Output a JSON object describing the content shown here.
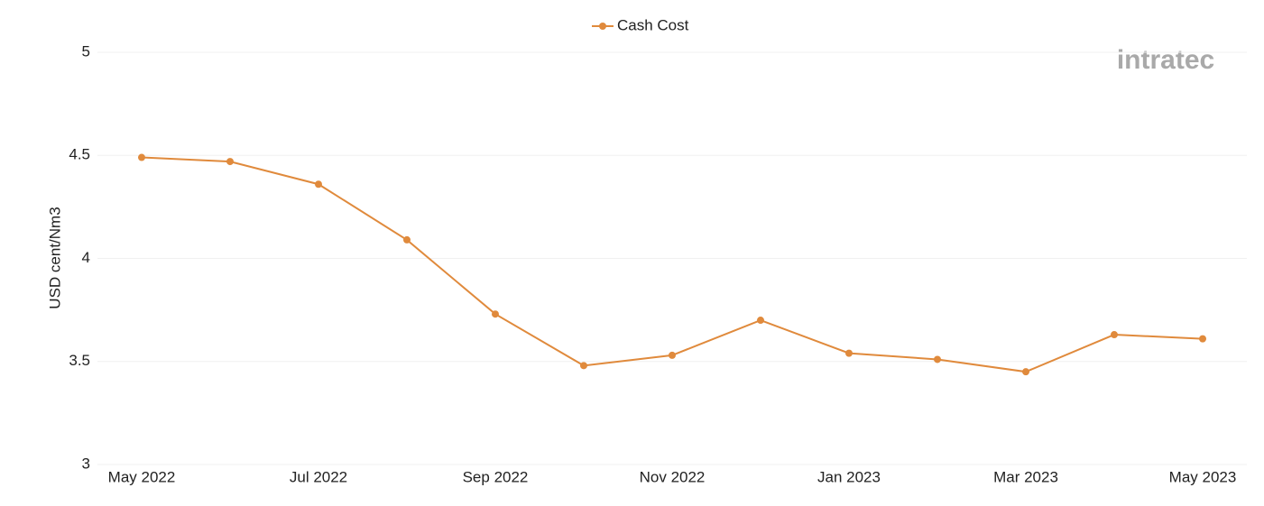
{
  "chart_data": {
    "type": "line",
    "y_label": "USD cent/Nm3",
    "watermark": "intratec",
    "categories": [
      "May 2022",
      null,
      "Jul 2022",
      null,
      "Sep 2022",
      null,
      "Nov 2022",
      null,
      "Jan 2023",
      null,
      "Mar 2023",
      null,
      "May 2023"
    ],
    "series": [
      {
        "name": "Cash Cost",
        "color": "#e08a3c",
        "values": [
          4.49,
          4.47,
          4.36,
          4.09,
          3.73,
          3.48,
          3.53,
          3.7,
          3.54,
          3.51,
          3.45,
          3.63,
          3.61
        ]
      }
    ],
    "ylim": [
      3,
      5
    ],
    "yticks": [
      3,
      3.5,
      4,
      4.5,
      5
    ],
    "grid": true,
    "legend": "top"
  }
}
